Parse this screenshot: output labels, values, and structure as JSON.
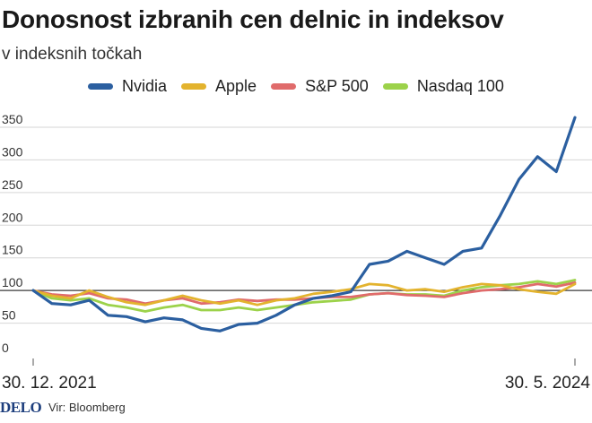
{
  "header": {
    "title": "Donosnost izbranih cen delnic in indeksov",
    "subtitle": "v indeksnih točkah"
  },
  "footer": {
    "logo": "DELO",
    "source": "Vir: Bloomberg"
  },
  "chart_data": {
    "type": "line",
    "grid": true,
    "legend_position": "top",
    "ylim": [
      0,
      370
    ],
    "yticks": [
      0,
      50,
      100,
      150,
      200,
      250,
      300,
      350
    ],
    "ytick_labels": [
      "0",
      "50",
      "100",
      "150",
      "200",
      "250",
      "300",
      "350"
    ],
    "xtick_labels": [
      "30. 12. 2021",
      "30. 5. 2024"
    ],
    "x": [
      "2021-12",
      "2022-01",
      "2022-02",
      "2022-03",
      "2022-04",
      "2022-05",
      "2022-06",
      "2022-07",
      "2022-08",
      "2022-09",
      "2022-10",
      "2022-11",
      "2022-12",
      "2023-01",
      "2023-02",
      "2023-03",
      "2023-04",
      "2023-05",
      "2023-06",
      "2023-07",
      "2023-08",
      "2023-09",
      "2023-10",
      "2023-11",
      "2023-12",
      "2024-01",
      "2024-02",
      "2024-03",
      "2024-04",
      "2024-05"
    ],
    "series": [
      {
        "name": "Nvidia",
        "color": "#2b5fa0",
        "values": [
          100,
          80,
          78,
          85,
          62,
          60,
          52,
          58,
          55,
          42,
          38,
          48,
          50,
          62,
          78,
          88,
          92,
          98,
          140,
          145,
          160,
          150,
          140,
          160,
          165,
          215,
          270,
          305,
          282,
          365
        ]
      },
      {
        "name": "Apple",
        "color": "#e3b32e",
        "values": [
          100,
          92,
          88,
          100,
          90,
          82,
          78,
          85,
          92,
          85,
          80,
          85,
          78,
          85,
          88,
          95,
          98,
          102,
          110,
          108,
          100,
          102,
          98,
          105,
          110,
          108,
          102,
          98,
          95,
          110
        ]
      },
      {
        "name": "S&P 500",
        "color": "#e06b6b",
        "values": [
          100,
          94,
          92,
          96,
          88,
          86,
          80,
          85,
          88,
          80,
          82,
          86,
          84,
          86,
          86,
          88,
          90,
          90,
          94,
          96,
          93,
          92,
          90,
          96,
          100,
          102,
          105,
          110,
          106,
          112
        ]
      },
      {
        "name": "Nasdaq 100",
        "color": "#9cd24a",
        "values": [
          100,
          88,
          85,
          88,
          78,
          74,
          68,
          74,
          78,
          70,
          70,
          74,
          70,
          74,
          78,
          82,
          84,
          86,
          94,
          96,
          94,
          94,
          92,
          100,
          105,
          108,
          110,
          114,
          110,
          116
        ]
      }
    ]
  }
}
